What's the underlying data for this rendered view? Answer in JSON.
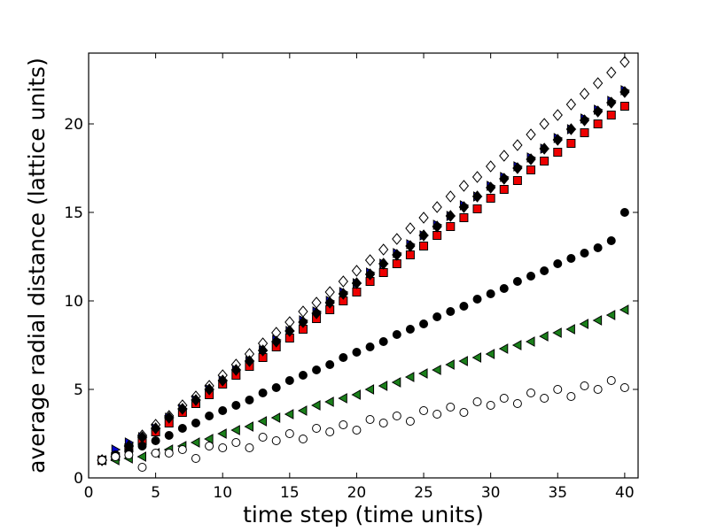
{
  "chart_data": {
    "type": "scatter",
    "xlabel": "time step (time units)",
    "ylabel": "average radial distance (lattice units)",
    "xlim": [
      0,
      41
    ],
    "ylim": [
      0,
      24
    ],
    "xticks": [
      0,
      5,
      10,
      15,
      20,
      25,
      30,
      35,
      40
    ],
    "yticks": [
      0,
      5,
      10,
      15,
      20
    ],
    "grid": false,
    "legend": "none",
    "series": [
      {
        "marker": "diamond-open",
        "color": "#ffffff",
        "x": [
          1,
          2,
          3,
          4,
          5,
          6,
          7,
          8,
          9,
          10,
          11,
          12,
          13,
          14,
          15,
          16,
          17,
          18,
          19,
          20,
          21,
          22,
          23,
          24,
          25,
          26,
          27,
          28,
          29,
          30,
          31,
          32,
          33,
          34,
          35,
          36,
          37,
          38,
          39,
          40
        ],
        "y": [
          1.0,
          1.2,
          1.8,
          2.4,
          3.0,
          3.5,
          4.1,
          4.6,
          5.2,
          5.8,
          6.4,
          7.0,
          7.6,
          8.2,
          8.8,
          9.4,
          9.9,
          10.5,
          11.1,
          11.7,
          12.3,
          12.9,
          13.5,
          14.1,
          14.7,
          15.3,
          15.9,
          16.5,
          17.0,
          17.6,
          18.2,
          18.8,
          19.4,
          20.0,
          20.5,
          21.1,
          21.7,
          22.3,
          22.9,
          23.5
        ]
      },
      {
        "marker": "triangle-right",
        "color": "#0000cc",
        "x": [
          1,
          2,
          3,
          4,
          5,
          6,
          7,
          8,
          9,
          10,
          11,
          12,
          13,
          14,
          15,
          16,
          17,
          18,
          19,
          20,
          21,
          22,
          23,
          24,
          25,
          26,
          27,
          28,
          29,
          30,
          31,
          32,
          33,
          34,
          35,
          36,
          37,
          38,
          39,
          40
        ],
        "y": [
          1.0,
          1.6,
          2.0,
          2.3,
          2.8,
          3.4,
          3.9,
          4.4,
          5.0,
          5.5,
          6.1,
          6.6,
          7.2,
          7.8,
          8.3,
          8.9,
          9.4,
          10.0,
          10.5,
          11.0,
          11.6,
          12.1,
          12.7,
          13.2,
          13.7,
          14.3,
          14.8,
          15.4,
          15.9,
          16.5,
          17.0,
          17.6,
          18.1,
          18.6,
          19.2,
          19.7,
          20.3,
          20.8,
          21.3,
          21.9
        ]
      },
      {
        "marker": "square",
        "color": "#ee0000",
        "x": [
          1,
          2,
          3,
          4,
          5,
          6,
          7,
          8,
          9,
          10,
          11,
          12,
          13,
          14,
          15,
          16,
          17,
          18,
          19,
          20,
          21,
          22,
          23,
          24,
          25,
          26,
          27,
          28,
          29,
          30,
          31,
          32,
          33,
          34,
          35,
          36,
          37,
          38,
          39,
          40
        ],
        "y": [
          1.0,
          1.2,
          1.7,
          2.1,
          2.6,
          3.1,
          3.7,
          4.2,
          4.7,
          5.3,
          5.8,
          6.3,
          6.8,
          7.4,
          7.9,
          8.4,
          9.0,
          9.5,
          10.0,
          10.5,
          11.1,
          11.6,
          12.1,
          12.6,
          13.1,
          13.7,
          14.2,
          14.7,
          15.2,
          15.8,
          16.3,
          16.8,
          17.4,
          17.9,
          18.4,
          18.9,
          19.5,
          20.0,
          20.5,
          21.0
        ]
      },
      {
        "marker": "diamond",
        "color": "#000000",
        "x": [
          1,
          2,
          3,
          4,
          5,
          6,
          7,
          8,
          9,
          10,
          11,
          12,
          13,
          14,
          15,
          16,
          17,
          18,
          19,
          20,
          21,
          22,
          23,
          24,
          25,
          26,
          27,
          28,
          29,
          30,
          31,
          32,
          33,
          34,
          35,
          36,
          37,
          38,
          39,
          40
        ],
        "y": [
          1.0,
          1.2,
          1.8,
          2.3,
          2.8,
          3.4,
          3.9,
          4.4,
          5.0,
          5.5,
          6.1,
          6.6,
          7.2,
          7.7,
          8.3,
          8.8,
          9.3,
          9.9,
          10.4,
          11.0,
          11.5,
          12.1,
          12.6,
          13.1,
          13.7,
          14.2,
          14.8,
          15.3,
          15.9,
          16.4,
          16.9,
          17.5,
          18.0,
          18.6,
          19.1,
          19.7,
          20.2,
          20.7,
          21.2,
          21.8
        ]
      },
      {
        "marker": "circle",
        "color": "#000000",
        "x": [
          1,
          2,
          3,
          4,
          5,
          6,
          7,
          8,
          9,
          10,
          11,
          12,
          13,
          14,
          15,
          16,
          17,
          18,
          19,
          20,
          21,
          22,
          23,
          24,
          25,
          26,
          27,
          28,
          29,
          30,
          31,
          32,
          33,
          34,
          35,
          36,
          37,
          38,
          39,
          40
        ],
        "y": [
          1.0,
          1.3,
          1.5,
          1.8,
          2.1,
          2.4,
          2.8,
          3.1,
          3.5,
          3.8,
          4.1,
          4.4,
          4.8,
          5.1,
          5.5,
          5.8,
          6.1,
          6.4,
          6.8,
          7.1,
          7.4,
          7.7,
          8.1,
          8.4,
          8.7,
          9.1,
          9.4,
          9.7,
          10.1,
          10.4,
          10.7,
          11.1,
          11.4,
          11.7,
          12.1,
          12.4,
          12.7,
          13.0,
          13.4,
          15.0
        ]
      },
      {
        "marker": "triangle-left",
        "color": "#1a7f1a",
        "x": [
          1,
          2,
          3,
          4,
          5,
          6,
          7,
          8,
          9,
          10,
          11,
          12,
          13,
          14,
          15,
          16,
          17,
          18,
          19,
          20,
          21,
          22,
          23,
          24,
          25,
          26,
          27,
          28,
          29,
          30,
          31,
          32,
          33,
          34,
          35,
          36,
          37,
          38,
          39,
          40
        ],
        "y": [
          1.0,
          1.0,
          1.1,
          1.2,
          1.4,
          1.6,
          1.8,
          2.0,
          2.2,
          2.5,
          2.7,
          2.9,
          3.2,
          3.4,
          3.6,
          3.8,
          4.1,
          4.3,
          4.5,
          4.7,
          5.0,
          5.2,
          5.4,
          5.7,
          5.9,
          6.1,
          6.4,
          6.6,
          6.8,
          7.0,
          7.3,
          7.5,
          7.7,
          8.0,
          8.2,
          8.4,
          8.7,
          8.9,
          9.2,
          9.5
        ]
      },
      {
        "marker": "circle-open",
        "color": "#ffffff",
        "x": [
          1,
          2,
          3,
          4,
          5,
          6,
          7,
          8,
          9,
          10,
          11,
          12,
          13,
          14,
          15,
          16,
          17,
          18,
          19,
          20,
          21,
          22,
          23,
          24,
          25,
          26,
          27,
          28,
          29,
          30,
          31,
          32,
          33,
          34,
          35,
          36,
          37,
          38,
          39,
          40
        ],
        "y": [
          1.0,
          1.2,
          1.3,
          0.6,
          1.4,
          1.4,
          1.6,
          1.1,
          1.8,
          1.7,
          2.0,
          1.7,
          2.3,
          2.1,
          2.5,
          2.2,
          2.8,
          2.6,
          3.0,
          2.7,
          3.3,
          3.1,
          3.5,
          3.2,
          3.8,
          3.6,
          4.0,
          3.7,
          4.3,
          4.1,
          4.5,
          4.2,
          4.8,
          4.5,
          5.0,
          4.6,
          5.2,
          5.0,
          5.5,
          5.1
        ]
      }
    ]
  },
  "labels": {
    "xlabel": "time step (time units)",
    "ylabel": "average radial distance (lattice units)"
  }
}
